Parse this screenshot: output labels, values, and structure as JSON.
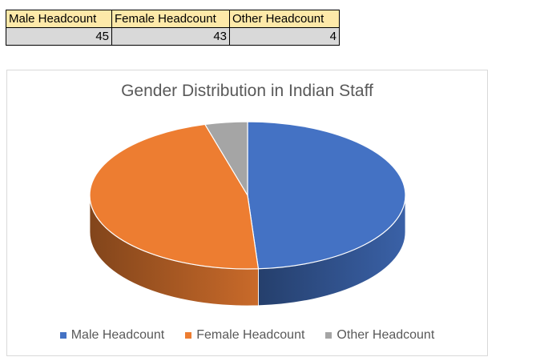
{
  "table": {
    "headers": [
      "Male Headcount",
      "Female Headcount",
      "Other Headcount"
    ],
    "values": [
      "45",
      "43",
      "4"
    ]
  },
  "colors": {
    "male": "#4472c4",
    "female": "#ed7d31",
    "other": "#a5a5a5",
    "header_fill": "#fde9a9",
    "value_fill": "#d9d9d9"
  },
  "chart_data": {
    "type": "pie",
    "style": "3d",
    "title": "Gender Distribution in Indian Staff",
    "categories": [
      "Male Headcount",
      "Female Headcount",
      "Other Headcount"
    ],
    "values": [
      45,
      43,
      4
    ],
    "colors": [
      "#4472c4",
      "#ed7d31",
      "#a5a5a5"
    ],
    "legend_position": "bottom"
  }
}
